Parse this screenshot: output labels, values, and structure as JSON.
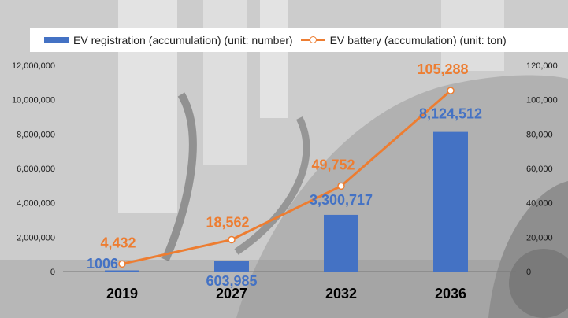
{
  "chart_data": {
    "type": "bar+line",
    "categories": [
      "2019",
      "2027",
      "2032",
      "2036"
    ],
    "series": [
      {
        "name": "EV registration (accumulation) (unit: number)",
        "type": "bar",
        "axis": "left",
        "values": [
          1006,
          603985,
          3300717,
          8124512
        ],
        "labels": [
          "1006",
          "603,985",
          "3,300,717",
          "8,124,512"
        ],
        "color": "#4472c4"
      },
      {
        "name": "EV battery (accumulation) (unit: ton)",
        "type": "line",
        "axis": "right",
        "values": [
          4432,
          18562,
          49752,
          105288
        ],
        "labels": [
          "4,432",
          "18,562",
          "49,752",
          "105,288"
        ],
        "color": "#ed7d31"
      }
    ],
    "y_left": {
      "min": 0,
      "max": 12000000,
      "ticks": [
        "0",
        "2,000,000",
        "4,000,000",
        "6,000,000",
        "8,000,000",
        "10,000,000",
        "12,000,000"
      ]
    },
    "y_right": {
      "min": 0,
      "max": 120000,
      "ticks": [
        "0",
        "20,000",
        "40,000",
        "60,000",
        "80,000",
        "100,000",
        "120,000"
      ]
    },
    "legend": "top",
    "grid": false
  }
}
